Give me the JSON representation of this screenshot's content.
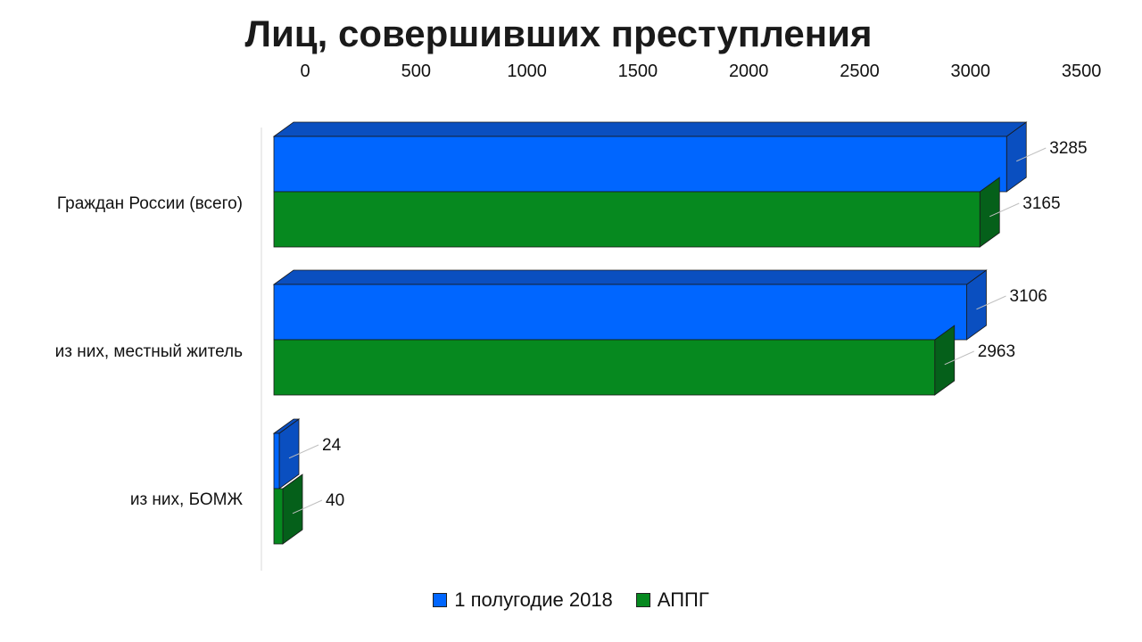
{
  "chart_data": {
    "type": "bar",
    "orientation": "horizontal",
    "title": "Лиц, совершивших преступления",
    "categories": [
      "Граждан России (всего)",
      "из них, местный житель",
      "из них, БОМЖ"
    ],
    "series": [
      {
        "name": "1 полугодие 2018",
        "values": [
          3285,
          3106,
          24
        ],
        "color": "#0066ff",
        "side_color": "#0a4fc0"
      },
      {
        "name": "АППГ",
        "values": [
          3165,
          2963,
          40
        ],
        "color": "#06891f",
        "side_color": "#05601a"
      }
    ],
    "xlim": [
      0,
      3500
    ],
    "x_ticks": [
      "0",
      "500",
      "1000",
      "1500",
      "2000",
      "2500",
      "3000",
      "3500"
    ],
    "axis_position": "top",
    "legend_position": "bottom",
    "grid": false,
    "style": "3d"
  }
}
